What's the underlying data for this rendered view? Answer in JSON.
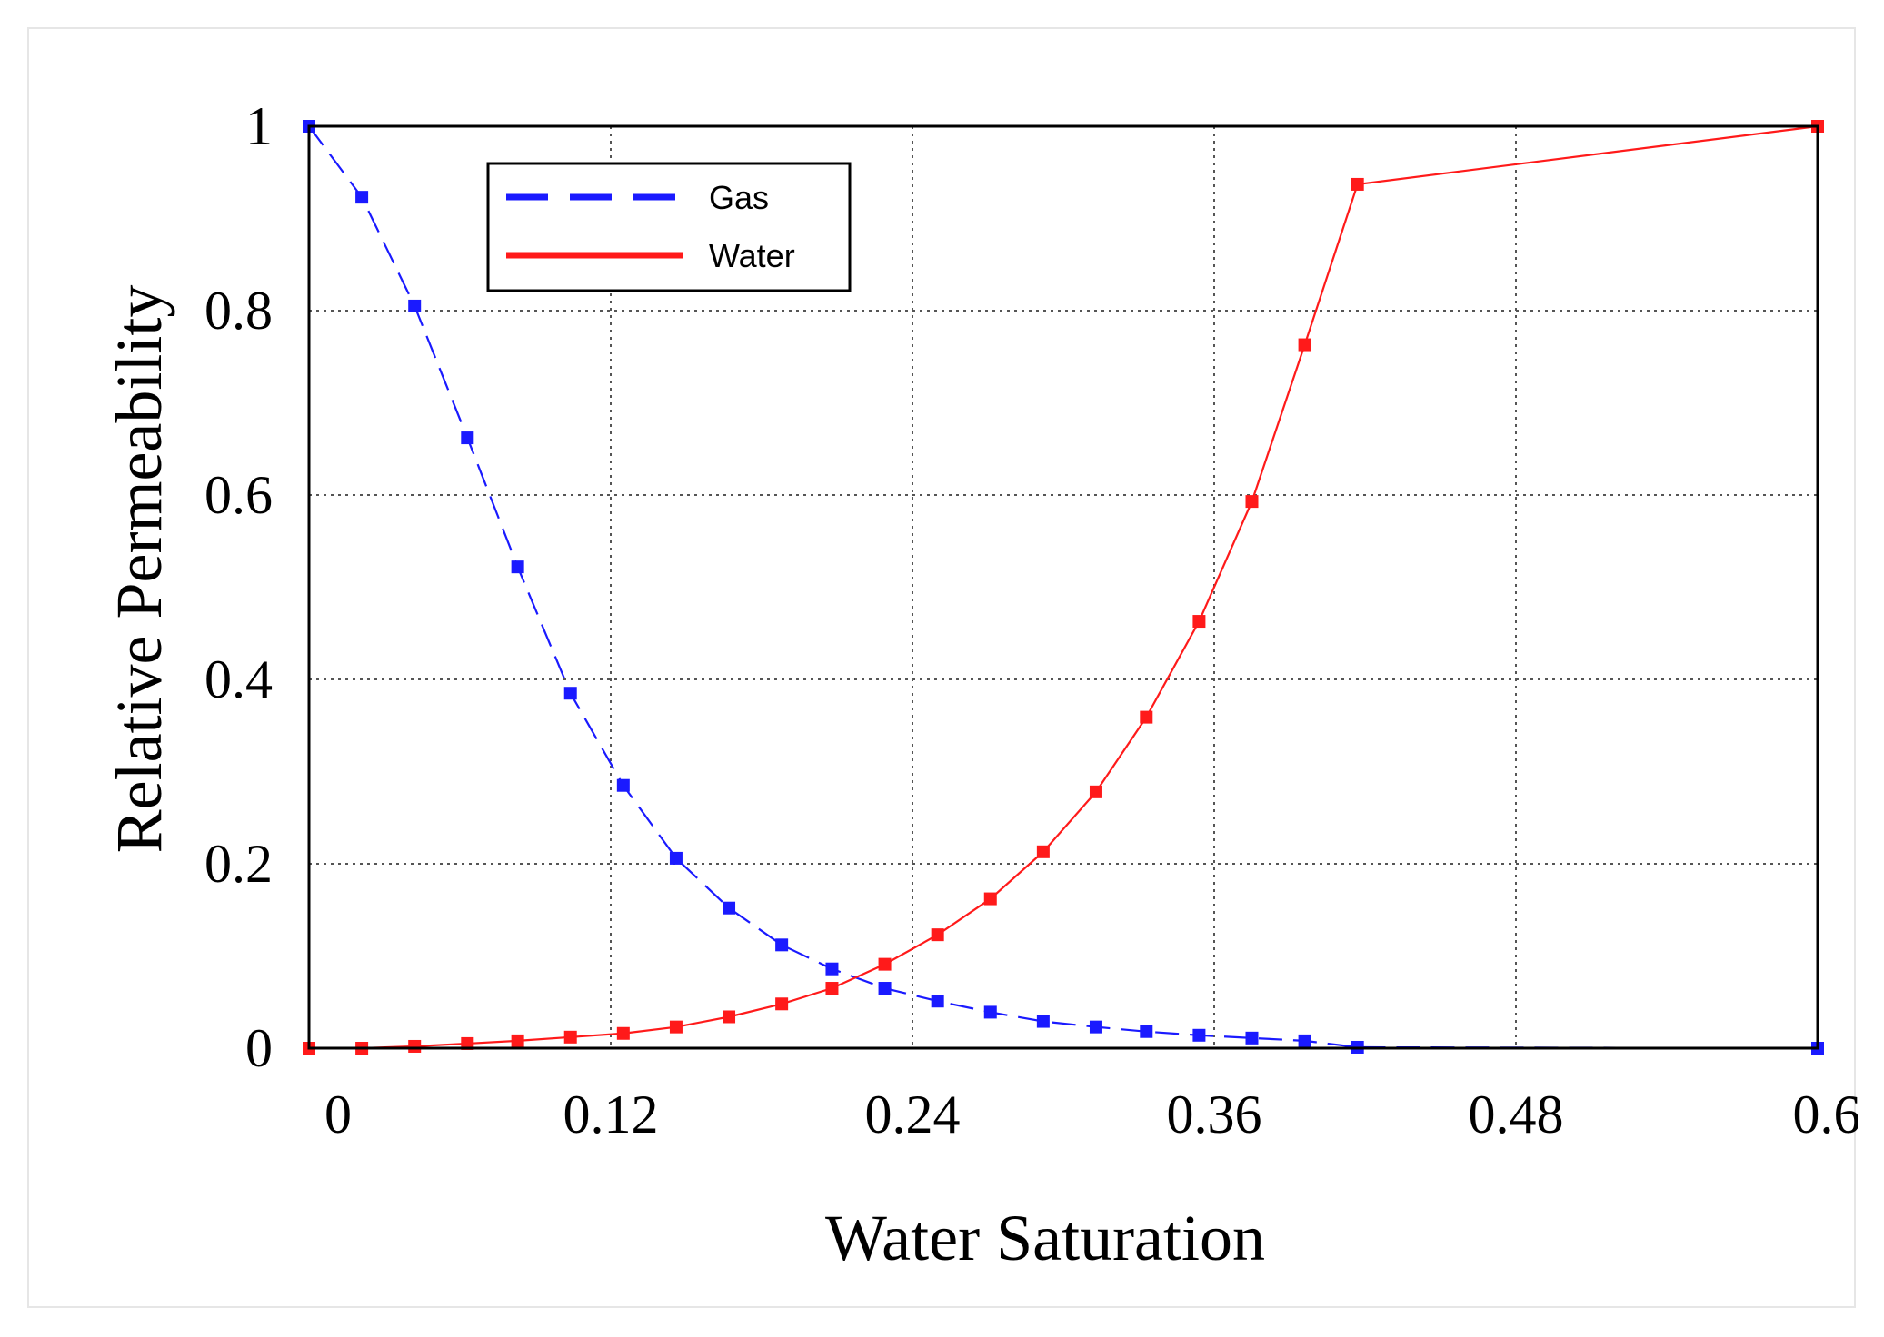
{
  "chart_data": {
    "type": "line",
    "title": "",
    "xlabel": "Water Saturation",
    "ylabel": "Relative Permeability",
    "xlim": [
      0,
      0.6
    ],
    "ylim": [
      0,
      1
    ],
    "xticks": [
      0,
      0.12,
      0.24,
      0.36,
      0.48,
      0.6
    ],
    "xtick_labels": [
      "0",
      "0.12",
      "0.24",
      "0.36",
      "0.48",
      "0.6"
    ],
    "yticks": [
      0,
      0.2,
      0.4,
      0.6,
      0.8,
      1
    ],
    "ytick_labels": [
      "0",
      "0.2",
      "0.4",
      "0.6",
      "0.8",
      "1"
    ],
    "grid": true,
    "legend_position": "top-left",
    "series": [
      {
        "name": "Gas",
        "color": "#1a1aff",
        "style": "dashed",
        "x": [
          0,
          0.021,
          0.042,
          0.063,
          0.083,
          0.104,
          0.125,
          0.146,
          0.167,
          0.188,
          0.208,
          0.229,
          0.25,
          0.271,
          0.292,
          0.313,
          0.333,
          0.354,
          0.375,
          0.396,
          0.417,
          0.6
        ],
        "y": [
          1.0,
          0.923,
          0.805,
          0.662,
          0.522,
          0.385,
          0.285,
          0.206,
          0.152,
          0.112,
          0.086,
          0.065,
          0.051,
          0.039,
          0.029,
          0.023,
          0.018,
          0.014,
          0.011,
          0.008,
          0.001,
          0.0
        ]
      },
      {
        "name": "Water",
        "color": "#ff1a1a",
        "style": "solid",
        "x": [
          0,
          0.021,
          0.042,
          0.063,
          0.083,
          0.104,
          0.125,
          0.146,
          0.167,
          0.188,
          0.208,
          0.229,
          0.25,
          0.271,
          0.292,
          0.313,
          0.333,
          0.354,
          0.375,
          0.396,
          0.417,
          0.6
        ],
        "y": [
          0.0,
          0.0,
          0.002,
          0.005,
          0.008,
          0.012,
          0.016,
          0.023,
          0.034,
          0.048,
          0.065,
          0.091,
          0.123,
          0.162,
          0.213,
          0.278,
          0.359,
          0.463,
          0.593,
          0.763,
          0.937,
          1.0
        ]
      }
    ]
  }
}
